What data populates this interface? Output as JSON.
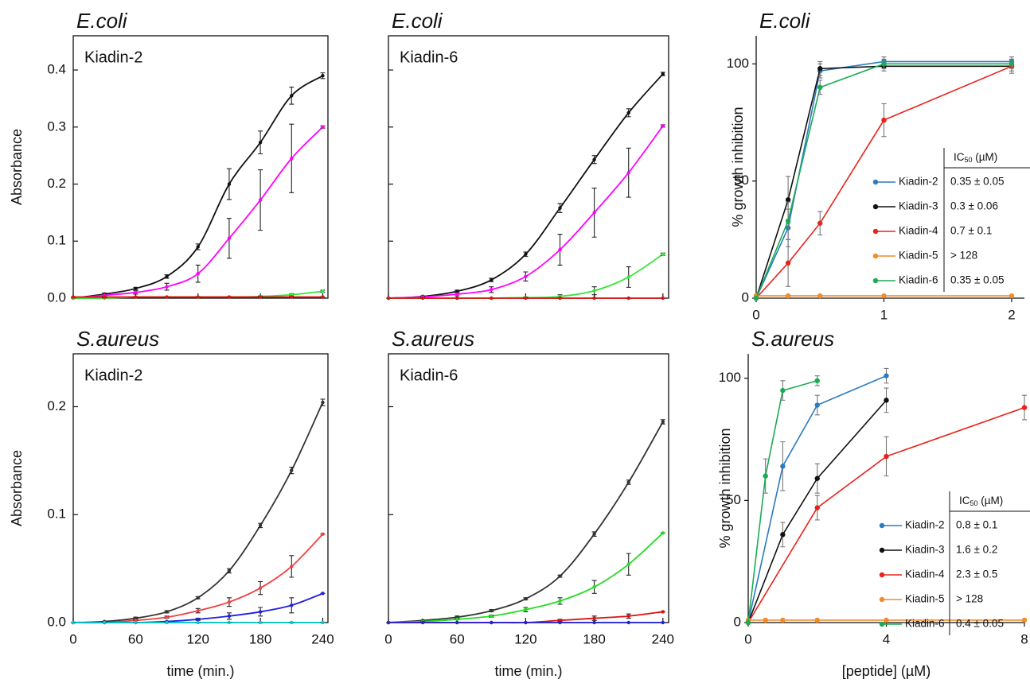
{
  "chart_data": [
    {
      "type": "line",
      "title": "E.coli",
      "label": "Kiadin-2",
      "ylabel": "Absorbance",
      "frame": true,
      "smooth": true,
      "xtick_labels": false,
      "x": [
        0,
        30,
        60,
        90,
        120,
        150,
        180,
        210,
        240
      ],
      "xlim": [
        0,
        245
      ],
      "ylim": [
        0,
        0.46
      ],
      "xticks": [
        0,
        60,
        120,
        180,
        240
      ],
      "yticks": [
        {
          "value": 0,
          "label": "0.0"
        },
        0.1,
        0.2,
        0.3,
        0.4
      ],
      "series": [
        {
          "color": "#111111",
          "values": [
            0,
            0.007,
            0.017,
            0.038,
            0.09,
            0.2,
            0.273,
            0.355,
            0.39
          ],
          "errors": [
            0,
            0.002,
            0.002,
            0.003,
            0.005,
            0.027,
            0.02,
            0.015,
            0.005
          ]
        },
        {
          "color": "#ff00ff",
          "values": [
            0,
            0.005,
            0.01,
            0.02,
            0.043,
            0.105,
            0.172,
            0.245,
            0.3
          ],
          "errors": [
            0,
            0.002,
            0.003,
            0.006,
            0.015,
            0.035,
            0.053,
            0.06,
            0.002
          ]
        },
        {
          "color": "#33e633",
          "values": [
            0,
            0,
            0.002,
            0.002,
            0.002,
            0.002,
            0.003,
            0.006,
            0.012
          ],
          "errors": [
            0,
            0,
            0,
            0,
            0,
            0,
            0.001,
            0.002,
            0.002
          ]
        },
        {
          "color": "#e01010",
          "values": [
            0.002,
            0.002,
            0.002,
            0.002,
            0.002,
            0.002,
            0.002,
            0.002,
            0.002
          ],
          "errors": [
            0,
            0,
            0,
            0,
            0,
            0,
            0,
            0,
            0
          ]
        }
      ]
    },
    {
      "type": "line",
      "title": "E.coli",
      "label": "Kiadin-6",
      "frame": true,
      "smooth": true,
      "xtick_labels": false,
      "ytick_labels": false,
      "x": [
        0,
        30,
        60,
        90,
        120,
        150,
        180,
        210,
        240
      ],
      "xlim": [
        0,
        245
      ],
      "ylim": [
        0,
        0.46
      ],
      "xticks": [
        0,
        60,
        120,
        180,
        240
      ],
      "yticks": [
        0,
        0.1,
        0.2,
        0.3,
        0.4
      ],
      "series": [
        {
          "color": "#111111",
          "values": [
            0,
            0.003,
            0.012,
            0.032,
            0.077,
            0.158,
            0.243,
            0.325,
            0.393
          ],
          "errors": [
            0,
            0.001,
            0.002,
            0.003,
            0.004,
            0.008,
            0.007,
            0.007,
            0.003
          ]
        },
        {
          "color": "#ff00ff",
          "values": [
            0,
            0.002,
            0.007,
            0.015,
            0.038,
            0.085,
            0.15,
            0.22,
            0.302
          ],
          "errors": [
            0,
            0.001,
            0.003,
            0.005,
            0.008,
            0.027,
            0.043,
            0.043,
            0.002
          ]
        },
        {
          "color": "#33e633",
          "values": [
            0,
            0,
            0,
            0,
            0.001,
            0.003,
            0.013,
            0.037,
            0.077
          ],
          "errors": [
            0,
            0,
            0,
            0,
            0.001,
            0.003,
            0.007,
            0.018,
            0.002
          ]
        },
        {
          "color": "#e01010",
          "values": [
            0,
            0,
            0,
            0,
            0,
            0,
            0,
            0,
            0
          ],
          "errors": [
            0,
            0,
            0,
            0,
            0,
            0,
            0,
            0,
            0
          ]
        }
      ]
    },
    {
      "type": "line",
      "title": "E.coli",
      "ylabel": "% growth inhibition",
      "frame": false,
      "smooth": false,
      "x": [
        0,
        0.25,
        0.5,
        1,
        2
      ],
      "xlim": [
        0,
        2.1
      ],
      "ylim": [
        0,
        112
      ],
      "xticks": [
        0,
        1,
        2
      ],
      "yticks": [
        0,
        50,
        100
      ],
      "legend_header": [
        "IC",
        "50",
        " (µM)"
      ],
      "series": [
        {
          "name": "Kiadin-2",
          "color": "#2b7bbf",
          "values": [
            0,
            30,
            97,
            101,
            101
          ],
          "errors": [
            0,
            8,
            3,
            2,
            2
          ],
          "ic50": "0.35 ± 0.05"
        },
        {
          "name": "Kiadin-3",
          "color": "#111111",
          "values": [
            0,
            42,
            98,
            99,
            99
          ],
          "errors": [
            0,
            10,
            3,
            2,
            2
          ],
          "ic50": "0.3 ± 0.06"
        },
        {
          "name": "Kiadin-4",
          "color": "#e8231c",
          "values": [
            0,
            15,
            32,
            76,
            99
          ],
          "errors": [
            0,
            10,
            5,
            7,
            3
          ],
          "ic50": "0.7 ± 0.1"
        },
        {
          "name": "Kiadin-5",
          "color": "#f28c28",
          "values": [
            1,
            1,
            1,
            1,
            1
          ],
          "errors": [
            0,
            0,
            0,
            0,
            0
          ],
          "ic50": "> 128"
        },
        {
          "name": "Kiadin-6",
          "color": "#1aab55",
          "values": [
            0,
            33,
            90,
            100,
            100
          ],
          "errors": [
            0,
            8,
            3,
            2,
            2
          ],
          "ic50": "0.35 ± 0.05"
        }
      ]
    },
    {
      "type": "line",
      "title": "S.aureus",
      "label": "Kiadin-2",
      "ylabel": "Absorbance",
      "xlabel": "time (min.)",
      "frame": true,
      "smooth": true,
      "x": [
        0,
        30,
        60,
        90,
        120,
        150,
        180,
        210,
        240
      ],
      "xlim": [
        0,
        245
      ],
      "ylim": [
        0,
        0.249
      ],
      "xticks": [
        0,
        60,
        120,
        180,
        240
      ],
      "yticks": [
        {
          "value": 0,
          "label": "0.0"
        },
        0.1,
        0.2
      ],
      "series": [
        {
          "color": "#333333",
          "values": [
            0,
            0.001,
            0.004,
            0.01,
            0.023,
            0.048,
            0.09,
            0.141,
            0.204
          ],
          "errors": [
            0,
            0,
            0.001,
            0.001,
            0.001,
            0.002,
            0.002,
            0.003,
            0.003
          ]
        },
        {
          "color": "#f04040",
          "values": [
            0,
            0,
            0.002,
            0.005,
            0.011,
            0.019,
            0.032,
            0.052,
            0.082
          ],
          "errors": [
            0,
            0,
            0,
            0.001,
            0.002,
            0.004,
            0.006,
            0.01,
            0
          ]
        },
        {
          "color": "#2020e0",
          "values": [
            0,
            0,
            0,
            0.001,
            0.003,
            0.006,
            0.01,
            0.016,
            0.027
          ],
          "errors": [
            0,
            0,
            0,
            0,
            0.001,
            0.003,
            0.004,
            0.007,
            0
          ]
        },
        {
          "color": "#00c8c8",
          "values": [
            0,
            0,
            0,
            0,
            0,
            0,
            0,
            0,
            0
          ],
          "errors": [
            0,
            0,
            0,
            0,
            0,
            0,
            0,
            0,
            0
          ]
        }
      ]
    },
    {
      "type": "line",
      "title": "S.aureus",
      "label": "Kiadin-6",
      "xlabel": "time (min.)",
      "frame": true,
      "smooth": true,
      "ytick_labels": false,
      "x": [
        0,
        30,
        60,
        90,
        120,
        150,
        180,
        210,
        240
      ],
      "xlim": [
        0,
        245
      ],
      "ylim": [
        0,
        0.249
      ],
      "xticks": [
        0,
        60,
        120,
        180,
        240
      ],
      "yticks": [
        0,
        0.1,
        0.2
      ],
      "series": [
        {
          "color": "#333333",
          "values": [
            0,
            0.002,
            0.005,
            0.011,
            0.022,
            0.043,
            0.082,
            0.13,
            0.186
          ],
          "errors": [
            0,
            0,
            0.001,
            0.001,
            0.001,
            0.001,
            0.002,
            0.002,
            0.002
          ]
        },
        {
          "color": "#22dd22",
          "values": [
            0,
            0.001,
            0.003,
            0.006,
            0.012,
            0.02,
            0.033,
            0.054,
            0.083
          ],
          "errors": [
            0,
            0,
            0,
            0.001,
            0.002,
            0.003,
            0.006,
            0.01,
            0
          ]
        },
        {
          "color": "#e01010",
          "values": [
            0,
            0,
            0,
            0,
            0,
            0.002,
            0.004,
            0.006,
            0.01
          ],
          "errors": [
            0,
            0,
            0,
            0,
            0,
            0.001,
            0.002,
            0.002,
            0
          ]
        },
        {
          "color": "#2020e0",
          "values": [
            0,
            0,
            0,
            0,
            0,
            0,
            0,
            0,
            0
          ],
          "errors": [
            0,
            0,
            0,
            0,
            0,
            0,
            0,
            0,
            0
          ]
        }
      ]
    },
    {
      "type": "line",
      "title": "S.aureus",
      "ylabel": "% growth inhibition",
      "xlabel": "[peptide] (µM)",
      "frame": false,
      "smooth": false,
      "xlim": [
        0,
        8
      ],
      "ylim": [
        0,
        110
      ],
      "xticks": [
        0,
        4,
        8
      ],
      "yticks": [
        0,
        50,
        100
      ],
      "legend_header": [
        "IC",
        "50",
        " (µM)"
      ],
      "series": [
        {
          "name": "Kiadin-2",
          "color": "#2b7bbf",
          "x": [
            0,
            1,
            2,
            4
          ],
          "values": [
            0,
            64,
            89,
            101
          ],
          "errors": [
            0,
            10,
            4,
            3
          ],
          "ic50": "0.8 ± 0.1"
        },
        {
          "name": "Kiadin-3",
          "color": "#111111",
          "x": [
            0,
            1,
            2,
            4
          ],
          "values": [
            0,
            36,
            59,
            91
          ],
          "errors": [
            0,
            5,
            6,
            5
          ],
          "ic50": "1.6 ± 0.2"
        },
        {
          "name": "Kiadin-4",
          "color": "#e8231c",
          "x": [
            0,
            2,
            4,
            8
          ],
          "values": [
            0,
            47,
            68,
            88
          ],
          "errors": [
            0,
            5,
            8,
            5
          ],
          "ic50": "2.3 ± 0.5"
        },
        {
          "name": "Kiadin-5",
          "color": "#f28c28",
          "x": [
            0,
            0.5,
            1,
            2,
            4,
            8
          ],
          "values": [
            1,
            1,
            1,
            1,
            1,
            1
          ],
          "errors": [
            0,
            0,
            0,
            0,
            0,
            0
          ],
          "ic50": "> 128"
        },
        {
          "name": "Kiadin-6",
          "color": "#1aab55",
          "x": [
            0,
            0.5,
            1,
            2
          ],
          "values": [
            0,
            60,
            95,
            99
          ],
          "errors": [
            0,
            7,
            4,
            2
          ],
          "ic50": "0.4 ± 0.05"
        }
      ]
    }
  ]
}
